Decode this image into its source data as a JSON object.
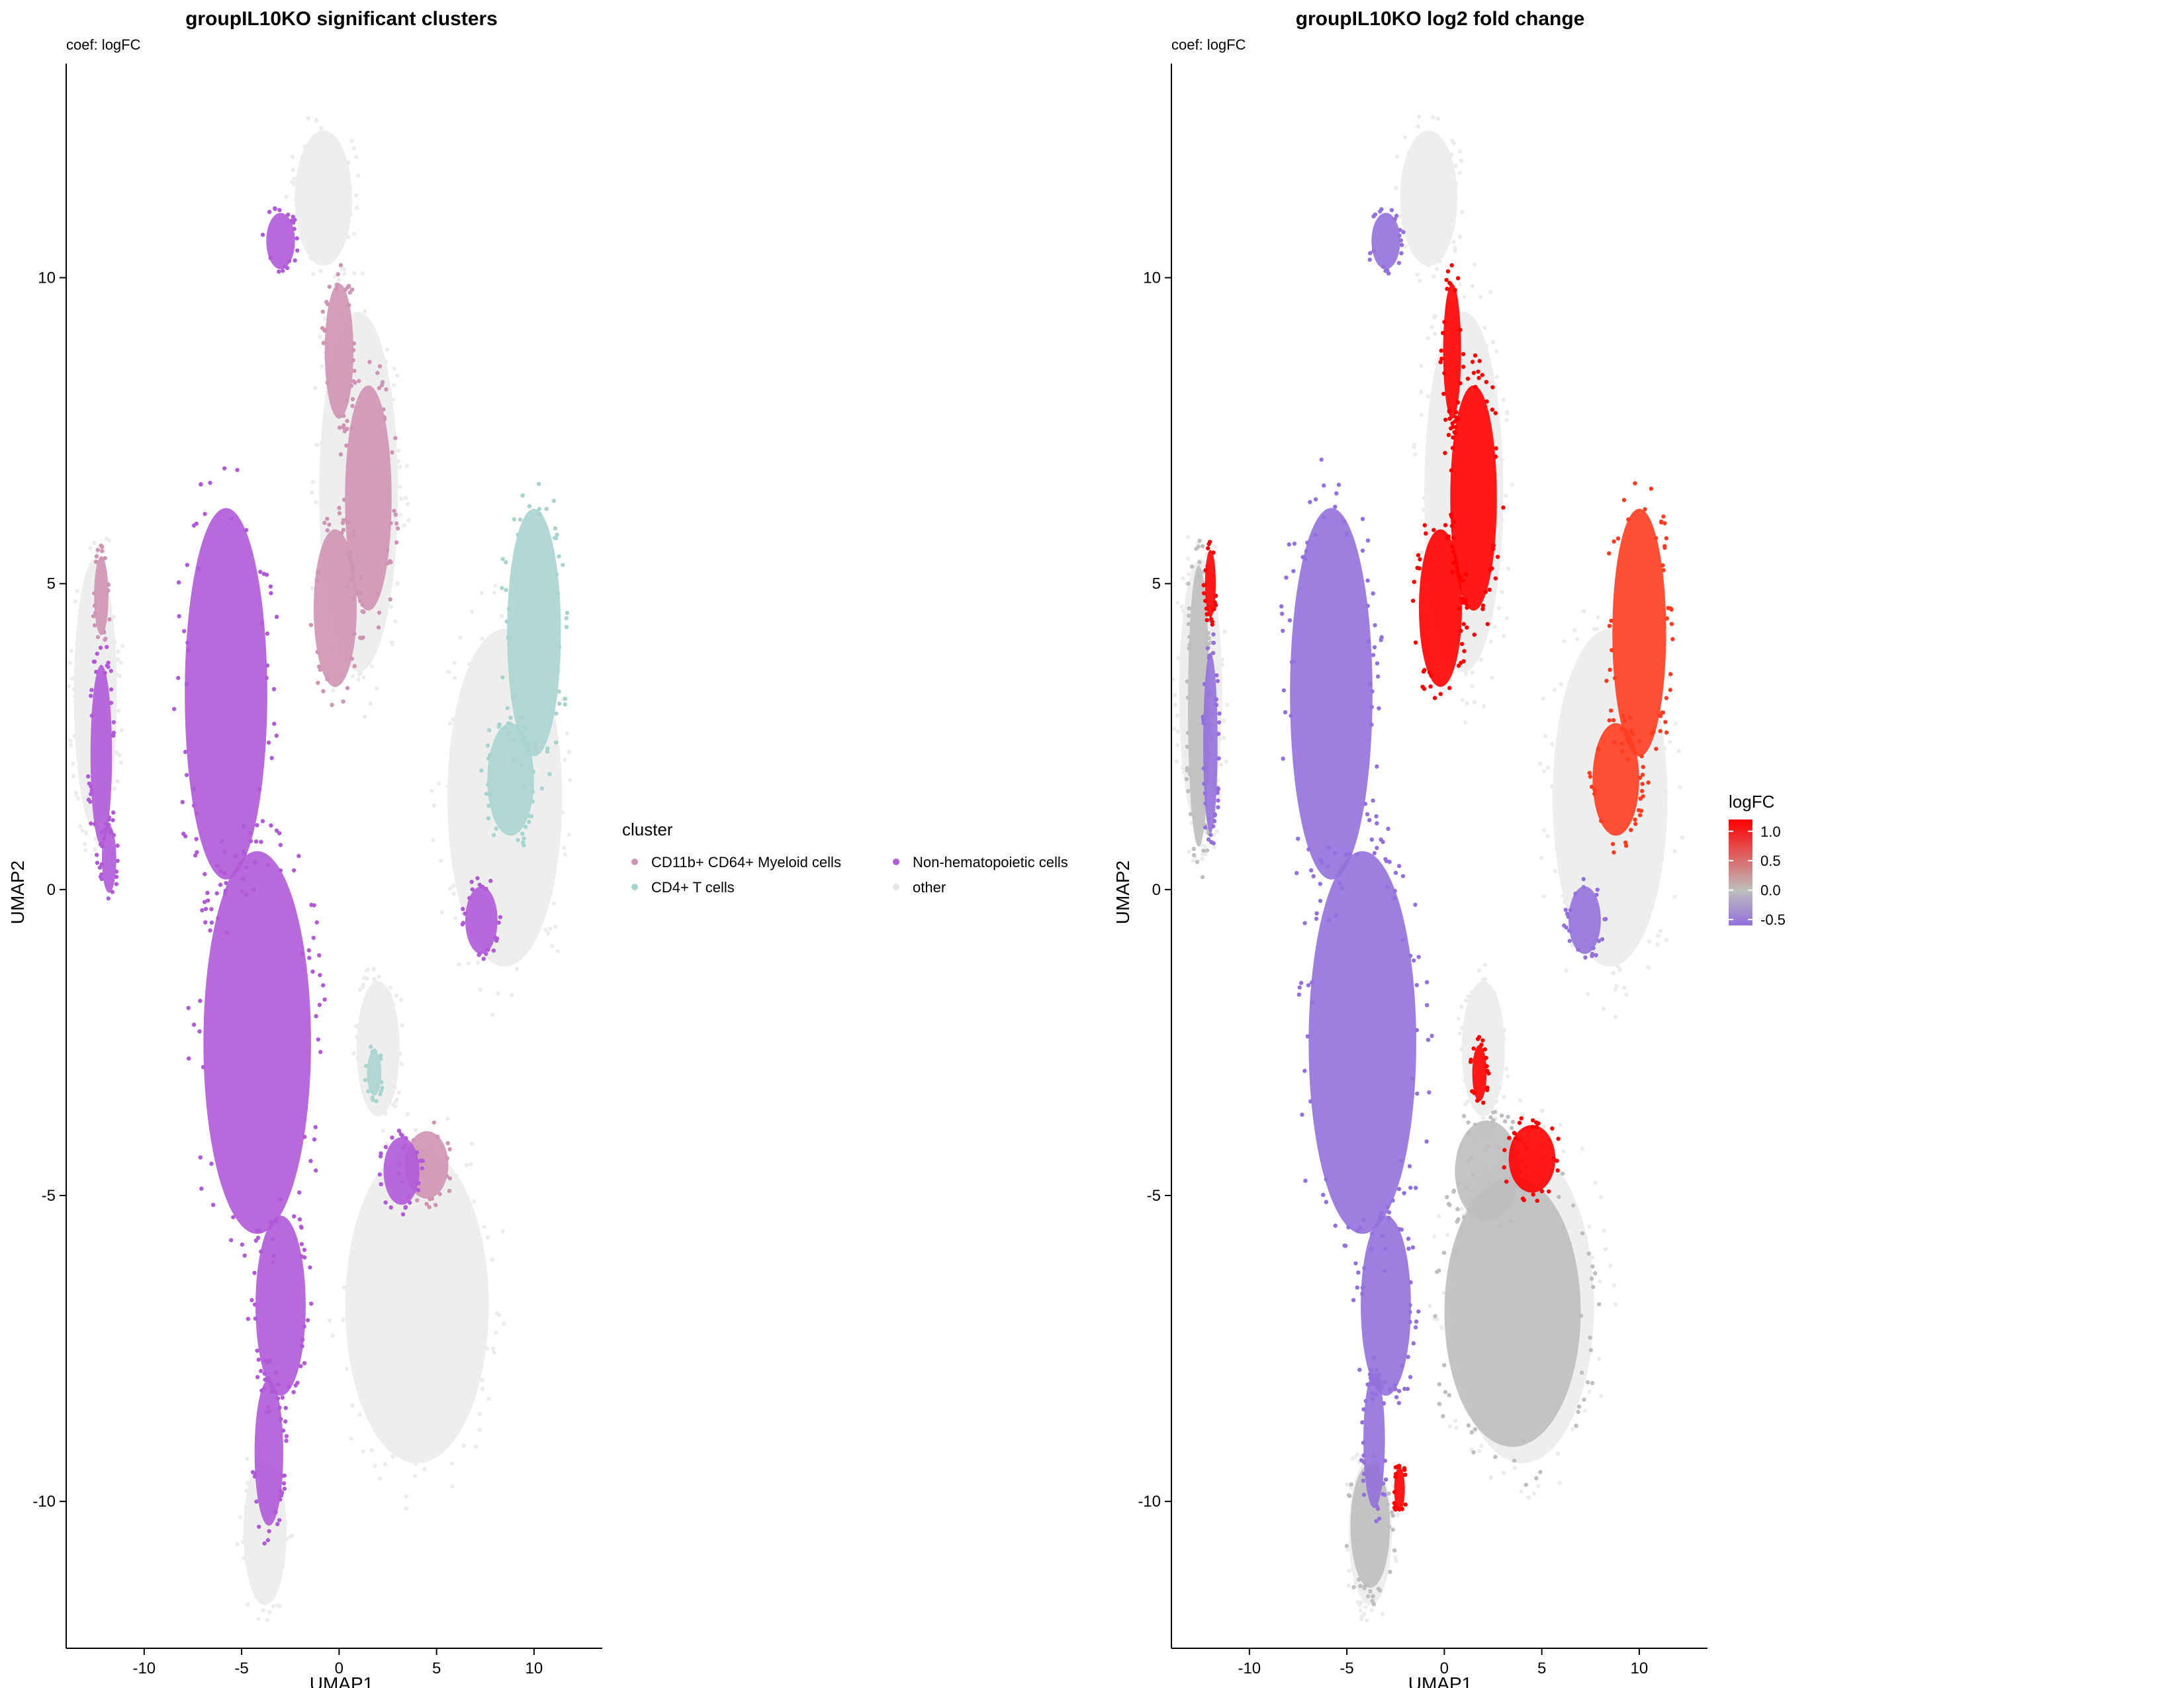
{
  "chart_data": [
    {
      "type": "scatter",
      "title": "groupIL10KO significant clusters",
      "subtitle": "coef: logFC",
      "xlabel": "UMAP1",
      "ylabel": "UMAP2",
      "xlim": [
        -14,
        13.5
      ],
      "ylim": [
        -12.4,
        13.5
      ],
      "xticks": [
        -10,
        -5,
        0,
        5,
        10
      ],
      "yticks": [
        -10,
        -5,
        0,
        5,
        10
      ],
      "xtick_labels": [
        "-10",
        "-5",
        "0",
        "5",
        "10"
      ],
      "ytick_labels": [
        "-10",
        "-5",
        "0",
        "5",
        "10"
      ],
      "grid": false,
      "legend": {
        "title": "cluster",
        "position": "right",
        "entries": [
          {
            "label": "CD11b+ CD64+ Myeloid cells",
            "color": "#cf94b4"
          },
          {
            "label": "Non-hematopoietic cells",
            "color": "#b05ad8"
          },
          {
            "label": "CD4+ T cells",
            "color": "#a8d4cf"
          },
          {
            "label": "other",
            "color": "#ececec"
          }
        ]
      },
      "series": [
        {
          "name": "other",
          "color": "#ececec",
          "regions": [
            {
              "center": [
                -0.8,
                11.3
              ],
              "radius": [
                1.6,
                1.2
              ]
            },
            {
              "center": [
                1.0,
                6.5
              ],
              "radius": [
                2.2,
                3.2
              ]
            },
            {
              "center": [
                -12.5,
                3.2
              ],
              "radius": [
                1.2,
                2.4
              ]
            },
            {
              "center": [
                8.5,
                1.5
              ],
              "radius": [
                3.2,
                3.0
              ]
            },
            {
              "center": [
                2.0,
                -2.6
              ],
              "radius": [
                1.2,
                1.2
              ]
            },
            {
              "center": [
                4.0,
                -6.8
              ],
              "radius": [
                4.0,
                2.8
              ]
            },
            {
              "center": [
                -3.8,
                -10.5
              ],
              "radius": [
                1.2,
                1.3
              ]
            }
          ]
        },
        {
          "name": "CD11b+ CD64+ Myeloid cells",
          "color": "#cf94b4",
          "regions": [
            {
              "center": [
                1.5,
                6.4
              ],
              "radius": [
                1.3,
                2.0
              ]
            },
            {
              "center": [
                -0.2,
                4.6
              ],
              "radius": [
                1.2,
                1.4
              ]
            },
            {
              "center": [
                0.0,
                8.8
              ],
              "radius": [
                0.8,
                1.2
              ]
            },
            {
              "center": [
                4.5,
                -4.5
              ],
              "radius": [
                1.2,
                0.6
              ]
            },
            {
              "center": [
                -12.2,
                4.8
              ],
              "radius": [
                0.4,
                0.7
              ]
            }
          ]
        },
        {
          "name": "Non-hematopoietic cells",
          "color": "#b05ad8",
          "regions": [
            {
              "center": [
                -5.8,
                3.2
              ],
              "radius": [
                2.3,
                3.3
              ]
            },
            {
              "center": [
                -4.2,
                -2.5
              ],
              "radius": [
                3.0,
                3.4
              ]
            },
            {
              "center": [
                -3.0,
                -6.8
              ],
              "radius": [
                1.4,
                1.6
              ]
            },
            {
              "center": [
                -3.6,
                -9.2
              ],
              "radius": [
                0.8,
                1.3
              ]
            },
            {
              "center": [
                -12.2,
                2.2
              ],
              "radius": [
                0.6,
                1.6
              ]
            },
            {
              "center": [
                -11.8,
                0.5
              ],
              "radius": [
                0.4,
                0.6
              ]
            },
            {
              "center": [
                7.3,
                -0.5
              ],
              "radius": [
                0.9,
                0.6
              ]
            },
            {
              "center": [
                -3.0,
                10.6
              ],
              "radius": [
                0.8,
                0.5
              ]
            },
            {
              "center": [
                3.2,
                -4.6
              ],
              "radius": [
                1.0,
                0.6
              ]
            }
          ]
        },
        {
          "name": "CD4+ T cells",
          "color": "#a8d4cf",
          "regions": [
            {
              "center": [
                10.0,
                4.2
              ],
              "radius": [
                1.5,
                2.2
              ]
            },
            {
              "center": [
                8.8,
                1.8
              ],
              "radius": [
                1.3,
                1.0
              ]
            },
            {
              "center": [
                1.8,
                -3.0
              ],
              "radius": [
                0.4,
                0.4
              ]
            }
          ]
        }
      ]
    },
    {
      "type": "scatter",
      "title": "groupIL10KO log2 fold change",
      "subtitle": "coef: logFC",
      "xlabel": "UMAP1",
      "ylabel": "UMAP2",
      "xlim": [
        -14,
        13.5
      ],
      "ylim": [
        -12.4,
        13.5
      ],
      "xticks": [
        -10,
        -5,
        0,
        5,
        10
      ],
      "yticks": [
        -10,
        -5,
        0,
        5,
        10
      ],
      "xtick_labels": [
        "-10",
        "-5",
        "0",
        "5",
        "10"
      ],
      "ytick_labels": [
        "-10",
        "-5",
        "0",
        "5",
        "10"
      ],
      "grid": false,
      "colorbar": {
        "title": "logFC",
        "position": "right",
        "range": [
          -0.6,
          1.2
        ],
        "ticks": [
          1.0,
          0.5,
          0.0,
          -0.5
        ],
        "tick_labels": [
          "1.0",
          "0.5",
          "0.0",
          "-0.5"
        ],
        "colors": [
          "#9370db",
          "#bebebe",
          "#ff0000"
        ]
      },
      "series": [
        {
          "name": "",
          "color": "#ececec",
          "regions": [
            {
              "center": [
                -0.8,
                11.3
              ],
              "radius": [
                1.6,
                1.2
              ]
            },
            {
              "center": [
                1.0,
                6.5
              ],
              "radius": [
                2.2,
                3.2
              ]
            },
            {
              "center": [
                -12.5,
                3.2
              ],
              "radius": [
                1.2,
                2.4
              ]
            },
            {
              "center": [
                8.5,
                1.5
              ],
              "radius": [
                3.2,
                3.0
              ]
            },
            {
              "center": [
                2.0,
                -2.6
              ],
              "radius": [
                1.2,
                1.2
              ]
            },
            {
              "center": [
                4.0,
                -6.8
              ],
              "radius": [
                4.0,
                2.8
              ]
            },
            {
              "center": [
                -3.8,
                -10.5
              ],
              "radius": [
                1.2,
                1.3
              ]
            }
          ]
        },
        {
          "name": "",
          "color": "#bebebe",
          "regions": [
            {
              "center": [
                3.5,
                -6.9
              ],
              "radius": [
                3.8,
                2.4
              ]
            },
            {
              "center": [
                2.2,
                -4.6
              ],
              "radius": [
                1.8,
                0.9
              ]
            },
            {
              "center": [
                -3.8,
                -10.4
              ],
              "radius": [
                1.1,
                1.1
              ]
            },
            {
              "center": [
                -12.6,
                3.0
              ],
              "radius": [
                0.6,
                2.5
              ]
            }
          ]
        },
        {
          "name": "",
          "color": "#9370db",
          "regions": [
            {
              "center": [
                -5.8,
                3.2
              ],
              "radius": [
                2.3,
                3.3
              ]
            },
            {
              "center": [
                -4.2,
                -2.5
              ],
              "radius": [
                3.0,
                3.4
              ]
            },
            {
              "center": [
                -3.0,
                -6.8
              ],
              "radius": [
                1.4,
                1.6
              ]
            },
            {
              "center": [
                -3.6,
                -9.0
              ],
              "radius": [
                0.6,
                1.2
              ]
            },
            {
              "center": [
                -12.0,
                2.4
              ],
              "radius": [
                0.4,
                1.6
              ]
            },
            {
              "center": [
                7.2,
                -0.5
              ],
              "radius": [
                0.9,
                0.6
              ]
            },
            {
              "center": [
                -3.0,
                10.6
              ],
              "radius": [
                0.8,
                0.5
              ]
            }
          ]
        },
        {
          "name": "",
          "color": "#ff0000",
          "regions": [
            {
              "center": [
                1.5,
                6.4
              ],
              "radius": [
                1.3,
                2.0
              ]
            },
            {
              "center": [
                -0.2,
                4.6
              ],
              "radius": [
                1.2,
                1.4
              ]
            },
            {
              "center": [
                0.4,
                8.8
              ],
              "radius": [
                0.5,
                1.2
              ]
            },
            {
              "center": [
                -12.0,
                5.0
              ],
              "radius": [
                0.3,
                0.6
              ]
            },
            {
              "center": [
                4.5,
                -4.4
              ],
              "radius": [
                1.3,
                0.6
              ]
            },
            {
              "center": [
                1.8,
                -3.0
              ],
              "radius": [
                0.4,
                0.5
              ]
            },
            {
              "center": [
                -2.3,
                -9.8
              ],
              "radius": [
                0.3,
                0.4
              ]
            }
          ]
        },
        {
          "name": "",
          "color": "#ff3c20",
          "regions": [
            {
              "center": [
                10.0,
                4.2
              ],
              "radius": [
                1.5,
                2.2
              ]
            },
            {
              "center": [
                8.8,
                1.8
              ],
              "radius": [
                1.3,
                1.0
              ]
            }
          ]
        }
      ]
    }
  ]
}
